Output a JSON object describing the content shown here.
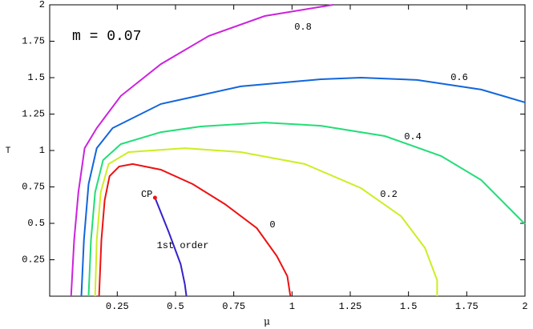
{
  "chart_data": {
    "type": "line",
    "title": "m = 0.07",
    "x_label": "μ",
    "y_label": "T",
    "xlim": [
      -0.04,
      2
    ],
    "ylim": [
      0,
      2
    ],
    "xticks": [
      0.25,
      0.5,
      0.75,
      1,
      1.25,
      1.5,
      1.75,
      2
    ],
    "yticks": [
      0.25,
      0.5,
      0.75,
      1,
      1.25,
      1.5,
      1.75,
      2
    ],
    "series": [
      {
        "name": "0.8",
        "color": "#cc22dd",
        "x": [
          0.052,
          0.065,
          0.083,
          0.11,
          0.162,
          0.265,
          0.437,
          0.643,
          0.883,
          1.176
        ],
        "values": [
          0,
          0.385,
          0.714,
          1.016,
          1.154,
          1.374,
          1.593,
          1.786,
          1.923,
          2.0
        ]
      },
      {
        "name": "0.6",
        "color": "#1166dd",
        "x": [
          0.096,
          0.107,
          0.127,
          0.162,
          0.23,
          0.437,
          0.78,
          1.124,
          1.296,
          1.537,
          1.812,
          2.0
        ],
        "values": [
          0,
          0.385,
          0.769,
          1.016,
          1.154,
          1.319,
          1.44,
          1.489,
          1.5,
          1.484,
          1.418,
          1.33
        ]
      },
      {
        "name": "0.4",
        "color": "#22dd77",
        "x": [
          0.127,
          0.137,
          0.155,
          0.189,
          0.265,
          0.437,
          0.608,
          0.883,
          1.124,
          1.399,
          1.64,
          1.812,
          1.949,
          2.0
        ],
        "values": [
          0,
          0.385,
          0.714,
          0.934,
          1.044,
          1.126,
          1.165,
          1.192,
          1.17,
          1.099,
          0.962,
          0.797,
          0.577,
          0.495
        ]
      },
      {
        "name": "0.2",
        "color": "#ccee22",
        "x": [
          0.155,
          0.162,
          0.179,
          0.213,
          0.299,
          0.54,
          0.78,
          1.055,
          1.296,
          1.468,
          1.571,
          1.623,
          1.623
        ],
        "values": [
          0,
          0.385,
          0.714,
          0.907,
          0.989,
          1.016,
          0.989,
          0.907,
          0.742,
          0.549,
          0.33,
          0.11,
          0
        ]
      },
      {
        "name": "0",
        "color": "#ee1111",
        "x": [
          0.172,
          0.182,
          0.196,
          0.217,
          0.258,
          0.316,
          0.437,
          0.574,
          0.712,
          0.849,
          0.935,
          0.98,
          0.993
        ],
        "values": [
          0,
          0.385,
          0.659,
          0.824,
          0.89,
          0.907,
          0.868,
          0.769,
          0.632,
          0.467,
          0.275,
          0.137,
          0
        ]
      },
      {
        "name": "1st order",
        "color": "#3322cc",
        "x": [
          0.412,
          0.471,
          0.522,
          0.54,
          0.547
        ],
        "values": [
          0.676,
          0.44,
          0.22,
          0.082,
          0
        ]
      }
    ],
    "critical_point": {
      "label": "CP",
      "x": 0.412,
      "y": 0.676,
      "color": "#ee1111"
    }
  }
}
